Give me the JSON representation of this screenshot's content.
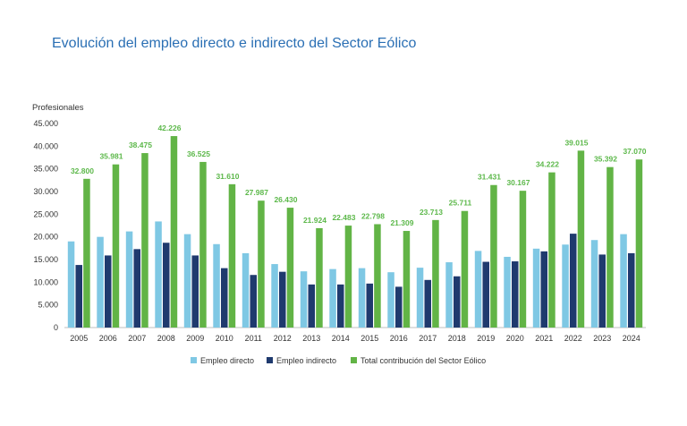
{
  "chart_data": {
    "type": "bar",
    "title": "Evolución del empleo directo e indirecto del Sector Eólico",
    "ylabel": "Profesionales",
    "xlabel": "",
    "ylim": [
      0,
      45000
    ],
    "yticks": [
      "0",
      "5.000",
      "10.000",
      "15.000",
      "20.000",
      "25.000",
      "30.000",
      "35.000",
      "40.000",
      "45.000"
    ],
    "grid": false,
    "legend_position": "bottom",
    "categories": [
      "2005",
      "2006",
      "2007",
      "2008",
      "2009",
      "2010",
      "2011",
      "2012",
      "2013",
      "2014",
      "2015",
      "2016",
      "2017",
      "2018",
      "2019",
      "2020",
      "2021",
      "2022",
      "2023",
      "2024"
    ],
    "series": [
      {
        "name": "Empleo directo",
        "color": "#7fc8e4",
        "values": [
          19000,
          20000,
          21200,
          23400,
          20600,
          18400,
          16400,
          14000,
          12400,
          12900,
          13100,
          12200,
          13200,
          14400,
          16900,
          15600,
          17400,
          18300,
          19300,
          20600
        ]
      },
      {
        "name": "Empleo indirecto",
        "color": "#1f3a6e",
        "values": [
          13800,
          15900,
          17300,
          18700,
          15900,
          13100,
          11600,
          12300,
          9500,
          9500,
          9700,
          9000,
          10500,
          11300,
          14500,
          14600,
          16800,
          20700,
          16100,
          16400
        ]
      },
      {
        "name": "Total contribución del Sector Eólico",
        "color": "#62b446",
        "values": [
          32800,
          35981,
          38475,
          42226,
          36525,
          31610,
          27987,
          26430,
          21924,
          22483,
          22798,
          21309,
          23713,
          25711,
          31431,
          30167,
          34222,
          39015,
          35392,
          37070
        ],
        "labels": [
          "32.800",
          "35.981",
          "38.475",
          "42.226",
          "36.525",
          "31.610",
          "27.987",
          "26.430",
          "21.924",
          "22.483",
          "22.798",
          "21.309",
          "23.713",
          "25.711",
          "31.431",
          "30.167",
          "34.222",
          "39.015",
          "35.392",
          "37.070"
        ]
      }
    ]
  }
}
